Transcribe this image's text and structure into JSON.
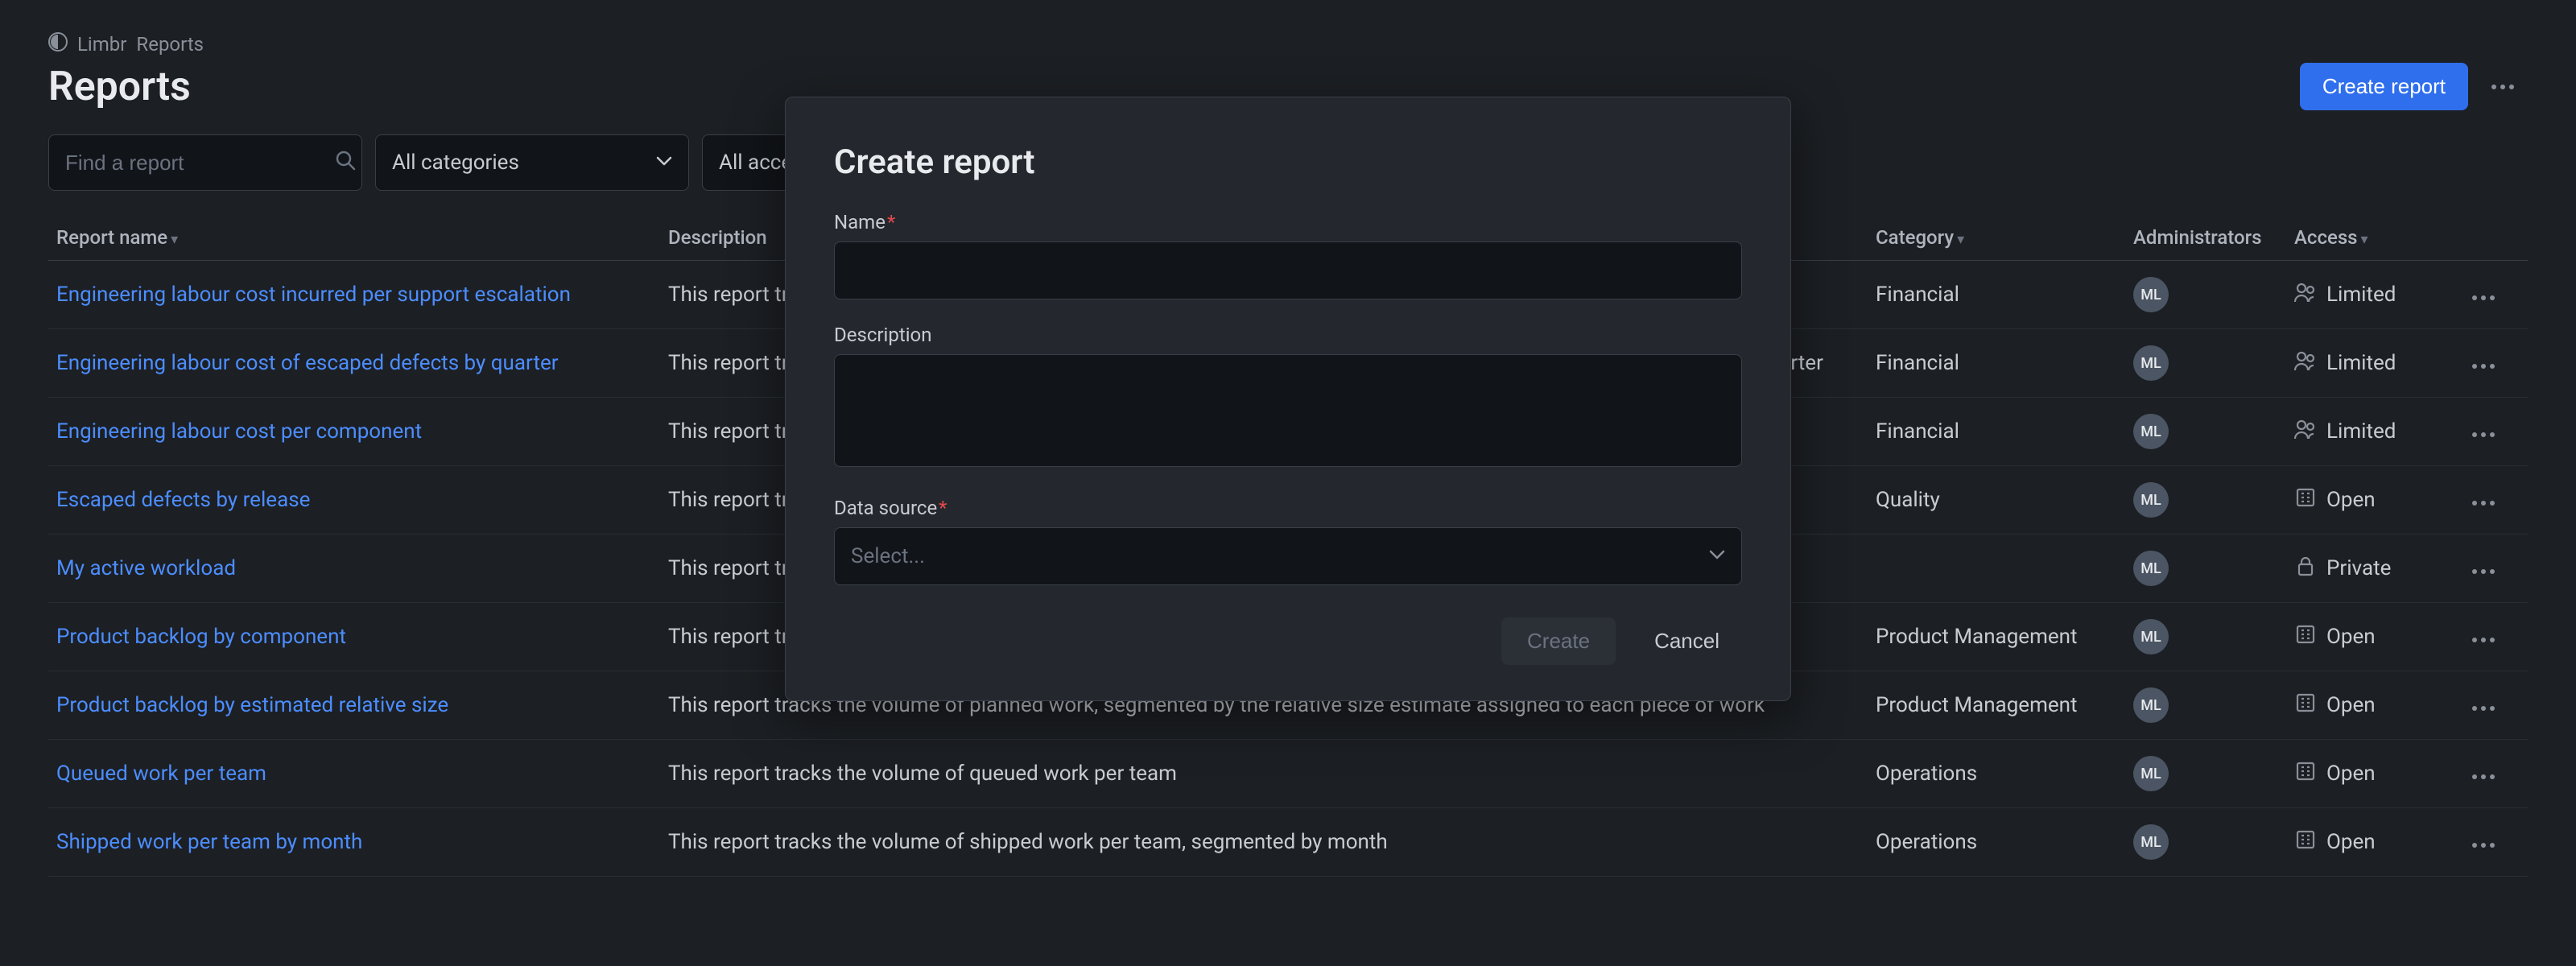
{
  "breadcrumb": {
    "app": "Limbr",
    "section": "Reports"
  },
  "header": {
    "title": "Reports",
    "create_button": "Create report"
  },
  "filters": {
    "search_placeholder": "Find a report",
    "category_label": "All categories",
    "access_label": "All access levels"
  },
  "columns": {
    "name": "Report name",
    "description": "Description",
    "category": "Category",
    "administrators": "Administrators",
    "access": "Access"
  },
  "admin_initials": "ML",
  "access_labels": {
    "limited": "Limited",
    "open": "Open",
    "private": "Private"
  },
  "rows": [
    {
      "name": "Engineering labour cost incurred per support escalation",
      "description": "This report tracks the labour cost of engineering work triggered by tickets escalated from customer support",
      "category": "Financial",
      "access": "limited"
    },
    {
      "name": "Engineering labour cost of escaped defects by quarter",
      "description": "This report tracks the labour cost of engineering work that addresses defects present in shipped work, segmented by quarter",
      "category": "Financial",
      "access": "limited"
    },
    {
      "name": "Engineering labour cost per component",
      "description": "This report tracks the labour cost of engineering work, segmented by the component to which the work primarily relates",
      "category": "Financial",
      "access": "limited"
    },
    {
      "name": "Escaped defects by release",
      "description": "This report tracks the number of defects present in shipped work, segmented by the release in which they were detected",
      "category": "Quality",
      "access": "open"
    },
    {
      "name": "My active workload",
      "description": "This report tracks the volume of work in progress for which I am responsible",
      "category": "",
      "access": "private"
    },
    {
      "name": "Product backlog by component",
      "description": "This report tracks the volume of planned work, segmented by the component to which the work relates",
      "category": "Product Management",
      "access": "open"
    },
    {
      "name": "Product backlog by estimated relative size",
      "description": "This report tracks the volume of planned work, segmented by the relative size estimate assigned to each piece of work",
      "category": "Product Management",
      "access": "open"
    },
    {
      "name": "Queued work per team",
      "description": "This report tracks the volume of queued work per team",
      "category": "Operations",
      "access": "open"
    },
    {
      "name": "Shipped work per team by month",
      "description": "This report tracks the volume of shipped work per team, segmented by month",
      "category": "Operations",
      "access": "open"
    }
  ],
  "modal": {
    "title": "Create report",
    "name_label": "Name",
    "description_label": "Description",
    "datasource_label": "Data source",
    "datasource_placeholder": "Select...",
    "create_button": "Create",
    "cancel_button": "Cancel"
  }
}
